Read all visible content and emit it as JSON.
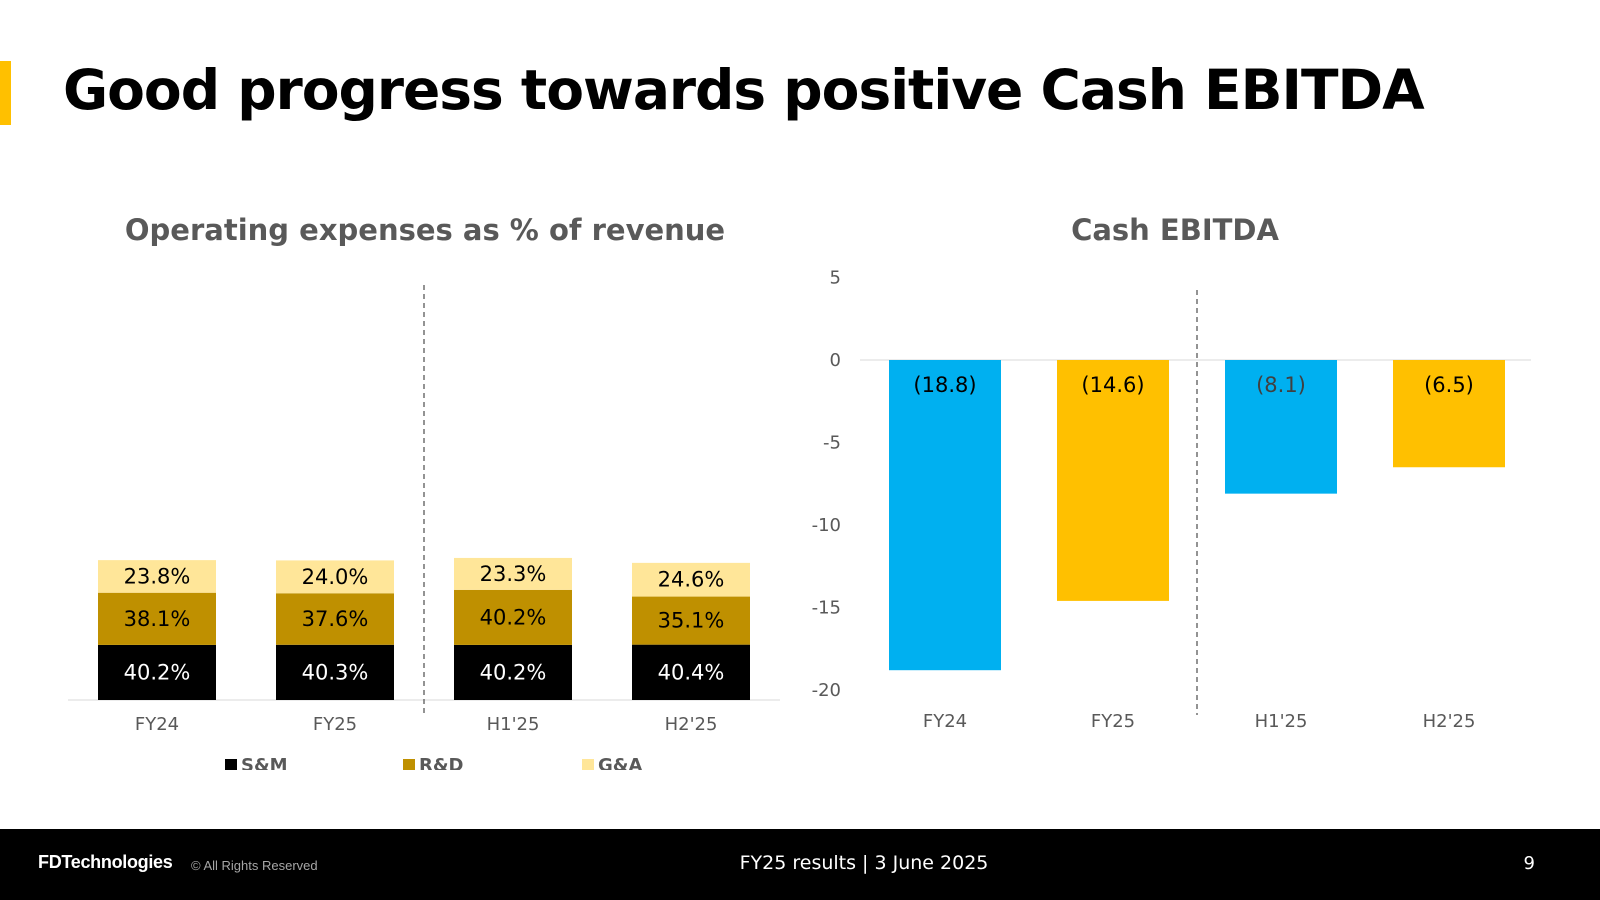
{
  "slide": {
    "title": "Good progress towards positive Cash EBITDA",
    "accent_color": "#FFC000"
  },
  "chart_data": [
    {
      "type": "bar",
      "stacked": true,
      "title": "Operating expenses as % of revenue",
      "categories": [
        "FY24",
        "FY25",
        "H1'25",
        "H2'25"
      ],
      "series": [
        {
          "name": "S&M",
          "values": [
            40.2,
            40.3,
            40.2,
            40.4
          ],
          "labels": [
            "40.2%",
            "40.3%",
            "40.2%",
            "40.4%"
          ],
          "color": "#000000",
          "label_color": "#FFFFFF"
        },
        {
          "name": "R&D",
          "values": [
            38.1,
            37.6,
            40.2,
            35.1
          ],
          "labels": [
            "38.1%",
            "37.6%",
            "40.2%",
            "35.1%"
          ],
          "color": "#BF9000",
          "label_color": "#000000"
        },
        {
          "name": "G&A",
          "values": [
            23.8,
            24.0,
            23.3,
            24.6
          ],
          "labels": [
            "23.8%",
            "24.0%",
            "23.3%",
            "24.6%"
          ],
          "color": "#FFE699",
          "label_color": "#000000"
        }
      ],
      "legend": [
        "S&M",
        "R&D",
        "G&A"
      ],
      "legend_position": "bottom",
      "divider_after_index": 1
    },
    {
      "type": "bar",
      "title": "Cash EBITDA",
      "categories": [
        "FY24",
        "FY25",
        "H1'25",
        "H2'25"
      ],
      "values": [
        -18.8,
        -14.6,
        -8.1,
        -6.5
      ],
      "labels": [
        "(18.8)",
        "(14.6)",
        "(8.1)",
        "(6.5)"
      ],
      "colors": [
        "#00B0F0",
        "#FFC000",
        "#00B0F0",
        "#FFC000"
      ],
      "ylim": [
        -20,
        5
      ],
      "yticks": [
        5,
        0,
        -5,
        -10,
        -15,
        -20
      ],
      "divider_after_index": 1
    }
  ],
  "footer": {
    "logo": "FDTechnologies",
    "rights": "© All Rights Reserved",
    "center": "FY25 results | 3 June 2025",
    "page_number": "9"
  }
}
